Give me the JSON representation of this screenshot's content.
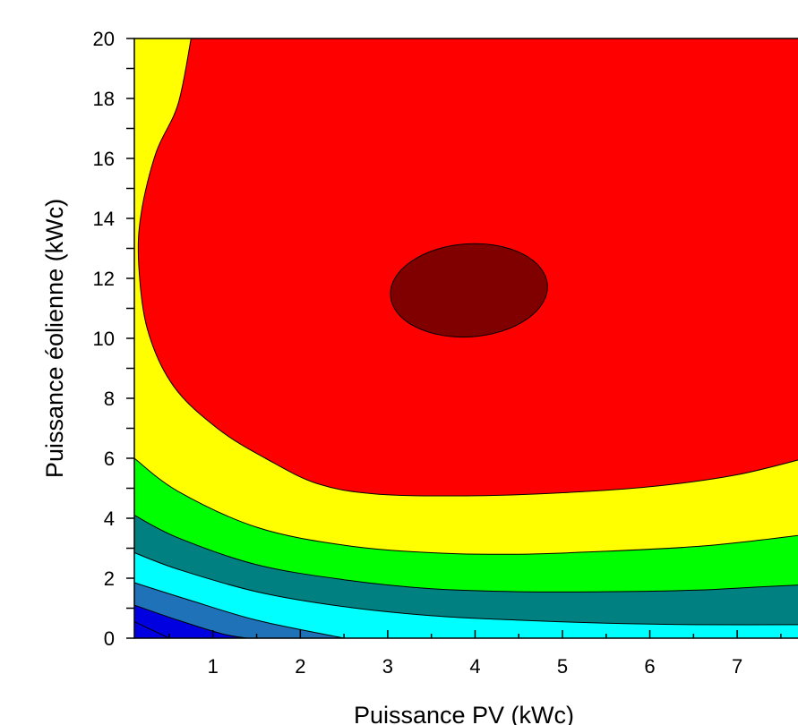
{
  "chart_data": {
    "type": "contour",
    "xlabel": "Puissance PV (kWc)",
    "ylabel": "Puissance éolienne (kWc)",
    "x_ticks": [
      1,
      2,
      3,
      4,
      5,
      6,
      7
    ],
    "y_ticks": [
      0,
      2,
      4,
      6,
      8,
      10,
      12,
      14,
      16,
      18,
      20
    ],
    "xlim": [
      0.1,
      7.9
    ],
    "ylim": [
      0,
      20
    ],
    "grid": false,
    "legend": "none",
    "optimum": {
      "x": 3.9,
      "y": 11.6
    },
    "levels": [
      {
        "name": "level-1",
        "color": "#0000e0",
        "boundary": [
          [
            0.1,
            0.55
          ],
          [
            0.5,
            0
          ]
        ]
      },
      {
        "name": "level-2",
        "color": "#1f72b8",
        "boundary": [
          [
            0.1,
            1.1
          ],
          [
            0.6,
            0.6
          ],
          [
            1.1,
            0.15
          ],
          [
            1.4,
            0
          ]
        ]
      },
      {
        "name": "level-3",
        "color": "#00ffff",
        "boundary": [
          [
            0.1,
            1.85
          ],
          [
            0.7,
            1.3
          ],
          [
            1.5,
            0.6
          ],
          [
            2.5,
            0
          ]
        ]
      },
      {
        "name": "level-4",
        "color": "#008080",
        "boundary": [
          [
            0.1,
            2.85
          ],
          [
            0.6,
            2.3
          ],
          [
            1.5,
            1.55
          ],
          [
            2.5,
            1.05
          ],
          [
            3.5,
            0.75
          ],
          [
            4.5,
            0.6
          ],
          [
            5.5,
            0.5
          ],
          [
            6.5,
            0.45
          ],
          [
            7.9,
            0.45
          ]
        ]
      },
      {
        "name": "level-5",
        "color": "#00ff00",
        "boundary": [
          [
            0.1,
            4.1
          ],
          [
            0.6,
            3.35
          ],
          [
            1.5,
            2.45
          ],
          [
            2.5,
            1.95
          ],
          [
            3.5,
            1.65
          ],
          [
            4.5,
            1.55
          ],
          [
            5.5,
            1.55
          ],
          [
            6.5,
            1.6
          ],
          [
            7.2,
            1.7
          ],
          [
            7.9,
            1.8
          ]
        ]
      },
      {
        "name": "level-6",
        "color": "#ffff00",
        "boundary": [
          [
            0.1,
            6.0
          ],
          [
            0.6,
            4.9
          ],
          [
            1.5,
            3.7
          ],
          [
            2.5,
            3.1
          ],
          [
            3.5,
            2.85
          ],
          [
            4.5,
            2.8
          ],
          [
            5.5,
            2.9
          ],
          [
            6.5,
            3.05
          ],
          [
            7.2,
            3.25
          ],
          [
            7.9,
            3.5
          ]
        ]
      },
      {
        "name": "level-7",
        "color": "#e05a3c",
        "boundary": [
          [
            0.1,
            20
          ],
          [
            7.9,
            20
          ]
        ]
      },
      {
        "name": "level-8",
        "color": "#ff0000",
        "boundary": [
          [
            0.75,
            20
          ],
          [
            0.6,
            17.8
          ],
          [
            0.35,
            16.2
          ],
          [
            0.18,
            14.2
          ],
          [
            0.15,
            12.5
          ],
          [
            0.25,
            10.3
          ],
          [
            0.55,
            8.4
          ],
          [
            1.05,
            7.0
          ],
          [
            1.6,
            6.0
          ],
          [
            2.2,
            5.15
          ],
          [
            2.9,
            4.8
          ],
          [
            4.0,
            4.75
          ],
          [
            5.0,
            4.85
          ],
          [
            6.0,
            5.05
          ],
          [
            7.0,
            5.45
          ],
          [
            7.9,
            6.1
          ],
          [
            7.9,
            20
          ]
        ]
      },
      {
        "name": "level-9",
        "color": "#800000",
        "ellipse": {
          "cx": 3.93,
          "cy": 11.6,
          "rx": 0.9,
          "ry": 1.55,
          "rotation_deg": -4
        }
      }
    ]
  }
}
